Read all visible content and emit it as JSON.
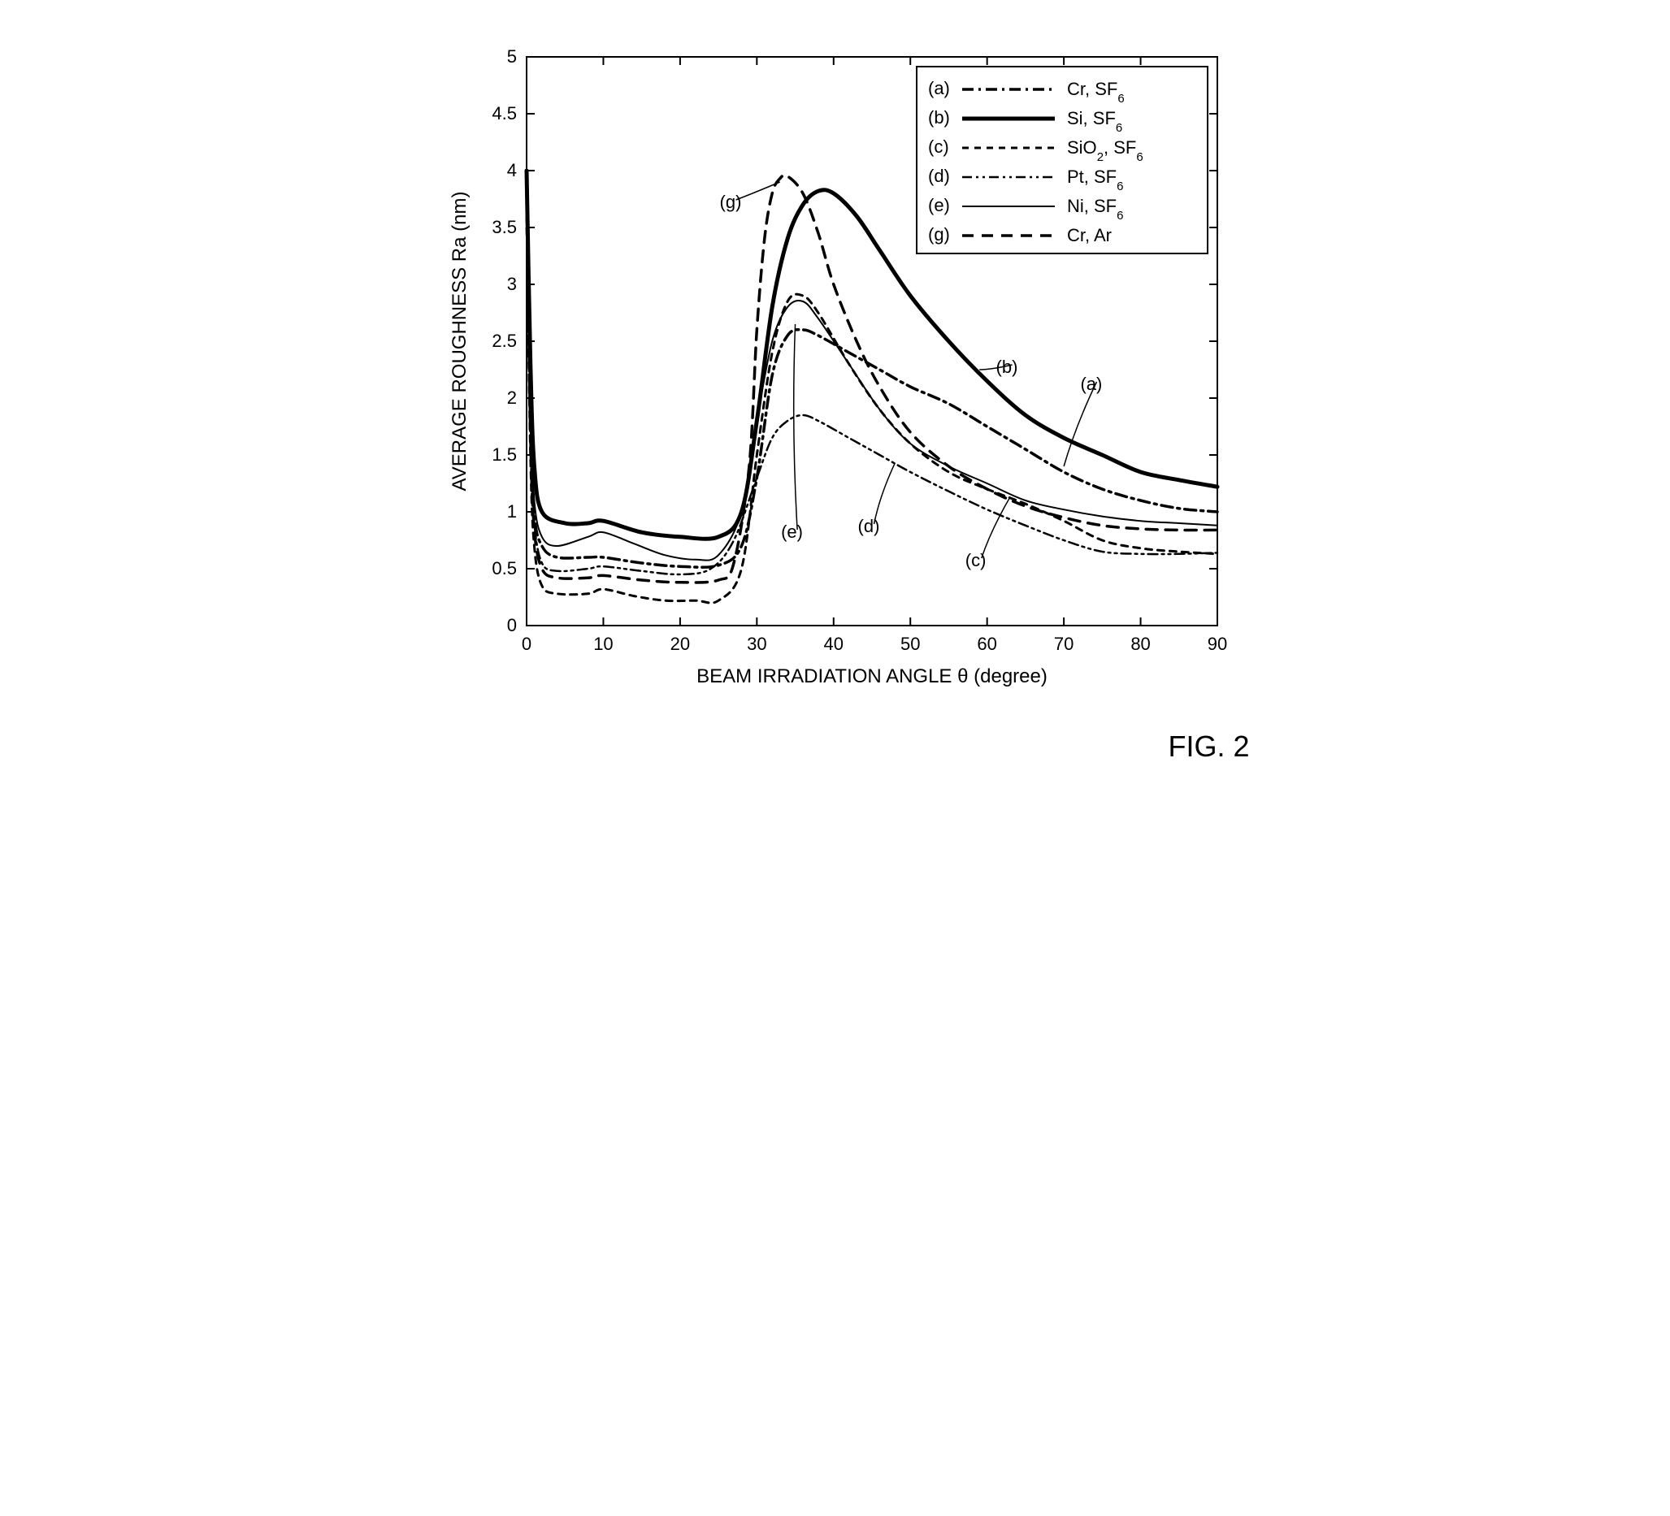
{
  "figure_label": "FIG. 2",
  "chart": {
    "type": "line",
    "background_color": "#ffffff",
    "plot_border_color": "#000000",
    "plot_border_width": 2,
    "x_axis": {
      "label": "BEAM IRRADIATION ANGLE θ (degree)",
      "min": 0,
      "max": 90,
      "tick_step": 10,
      "ticks": [
        0,
        10,
        20,
        30,
        40,
        50,
        60,
        70,
        80,
        90
      ],
      "label_fontsize": 24,
      "tick_fontsize": 22
    },
    "y_axis": {
      "label": "AVERAGE ROUGHNESS Ra (nm)",
      "min": 0,
      "max": 5,
      "tick_step": 0.5,
      "ticks": [
        0,
        0.5,
        1,
        1.5,
        2,
        2.5,
        3,
        3.5,
        4,
        4.5,
        5
      ],
      "label_fontsize": 24,
      "tick_fontsize": 22
    },
    "legend": {
      "position": "top-right-inside",
      "border": true,
      "items": [
        {
          "id": "a",
          "label": "Cr, SF",
          "sub": "6"
        },
        {
          "id": "b",
          "label": "Si, SF",
          "sub": "6"
        },
        {
          "id": "c",
          "label": "SiO",
          "sub1": "2",
          "label2": ", SF",
          "sub2": "6"
        },
        {
          "id": "d",
          "label": "Pt, SF",
          "sub": "6"
        },
        {
          "id": "e",
          "label": "Ni, SF",
          "sub": "6"
        },
        {
          "id": "g",
          "label": "Cr, Ar"
        }
      ]
    },
    "series": {
      "a": {
        "name": "Cr, SF6",
        "color": "#000000",
        "line_width": 3.5,
        "dash": "14 6 3 6",
        "points": [
          [
            0,
            4.0
          ],
          [
            0.5,
            2.0
          ],
          [
            1,
            1.0
          ],
          [
            2,
            0.7
          ],
          [
            4,
            0.6
          ],
          [
            8,
            0.6
          ],
          [
            10,
            0.6
          ],
          [
            15,
            0.55
          ],
          [
            20,
            0.52
          ],
          [
            25,
            0.53
          ],
          [
            28,
            0.7
          ],
          [
            30,
            1.3
          ],
          [
            32,
            2.2
          ],
          [
            34,
            2.55
          ],
          [
            36,
            2.6
          ],
          [
            38,
            2.55
          ],
          [
            42,
            2.4
          ],
          [
            46,
            2.25
          ],
          [
            50,
            2.1
          ],
          [
            55,
            1.95
          ],
          [
            60,
            1.75
          ],
          [
            65,
            1.55
          ],
          [
            70,
            1.35
          ],
          [
            75,
            1.2
          ],
          [
            80,
            1.1
          ],
          [
            85,
            1.03
          ],
          [
            90,
            1.0
          ]
        ]
      },
      "b": {
        "name": "Si, SF6",
        "color": "#000000",
        "line_width": 5,
        "dash": "none",
        "points": [
          [
            0,
            4.0
          ],
          [
            0.5,
            2.3
          ],
          [
            1,
            1.4
          ],
          [
            2,
            1.0
          ],
          [
            5,
            0.9
          ],
          [
            8,
            0.9
          ],
          [
            10,
            0.92
          ],
          [
            15,
            0.82
          ],
          [
            20,
            0.78
          ],
          [
            25,
            0.78
          ],
          [
            28,
            1.0
          ],
          [
            30,
            1.8
          ],
          [
            32,
            2.8
          ],
          [
            34,
            3.4
          ],
          [
            36,
            3.7
          ],
          [
            38,
            3.82
          ],
          [
            40,
            3.8
          ],
          [
            43,
            3.6
          ],
          [
            46,
            3.3
          ],
          [
            50,
            2.9
          ],
          [
            55,
            2.5
          ],
          [
            60,
            2.15
          ],
          [
            65,
            1.85
          ],
          [
            70,
            1.65
          ],
          [
            75,
            1.5
          ],
          [
            80,
            1.35
          ],
          [
            85,
            1.28
          ],
          [
            90,
            1.22
          ]
        ]
      },
      "c": {
        "name": "SiO2, SF6",
        "color": "#000000",
        "line_width": 3,
        "dash": "8 7",
        "points": [
          [
            0,
            3.6
          ],
          [
            0.5,
            1.5
          ],
          [
            1,
            0.7
          ],
          [
            2,
            0.35
          ],
          [
            4,
            0.28
          ],
          [
            8,
            0.28
          ],
          [
            10,
            0.32
          ],
          [
            14,
            0.26
          ],
          [
            18,
            0.22
          ],
          [
            22,
            0.22
          ],
          [
            25,
            0.22
          ],
          [
            28,
            0.5
          ],
          [
            30,
            1.5
          ],
          [
            32,
            2.4
          ],
          [
            34,
            2.85
          ],
          [
            36,
            2.9
          ],
          [
            38,
            2.75
          ],
          [
            42,
            2.3
          ],
          [
            46,
            1.9
          ],
          [
            50,
            1.6
          ],
          [
            55,
            1.35
          ],
          [
            60,
            1.2
          ],
          [
            65,
            1.07
          ],
          [
            70,
            0.92
          ],
          [
            75,
            0.75
          ],
          [
            80,
            0.68
          ],
          [
            85,
            0.65
          ],
          [
            90,
            0.63
          ]
        ]
      },
      "d": {
        "name": "Pt, SF6",
        "color": "#000000",
        "line_width": 2.5,
        "dash": "12 5 3 5 3 5",
        "points": [
          [
            0,
            3.5
          ],
          [
            0.5,
            1.6
          ],
          [
            1,
            0.9
          ],
          [
            2,
            0.55
          ],
          [
            4,
            0.48
          ],
          [
            8,
            0.5
          ],
          [
            10,
            0.52
          ],
          [
            15,
            0.48
          ],
          [
            20,
            0.45
          ],
          [
            24,
            0.5
          ],
          [
            27,
            0.75
          ],
          [
            30,
            1.3
          ],
          [
            32,
            1.65
          ],
          [
            34,
            1.8
          ],
          [
            36,
            1.85
          ],
          [
            38,
            1.8
          ],
          [
            42,
            1.65
          ],
          [
            46,
            1.5
          ],
          [
            50,
            1.35
          ],
          [
            55,
            1.18
          ],
          [
            60,
            1.02
          ],
          [
            65,
            0.88
          ],
          [
            70,
            0.75
          ],
          [
            75,
            0.65
          ],
          [
            80,
            0.63
          ],
          [
            85,
            0.63
          ],
          [
            90,
            0.64
          ]
        ]
      },
      "e": {
        "name": "Ni, SF6",
        "color": "#000000",
        "line_width": 2,
        "dash": "none",
        "points": [
          [
            0,
            3.8
          ],
          [
            0.5,
            1.9
          ],
          [
            1,
            1.1
          ],
          [
            2,
            0.78
          ],
          [
            4,
            0.7
          ],
          [
            8,
            0.78
          ],
          [
            10,
            0.82
          ],
          [
            14,
            0.72
          ],
          [
            18,
            0.62
          ],
          [
            22,
            0.58
          ],
          [
            25,
            0.62
          ],
          [
            28,
            1.0
          ],
          [
            30,
            1.8
          ],
          [
            32,
            2.5
          ],
          [
            34,
            2.8
          ],
          [
            36,
            2.85
          ],
          [
            38,
            2.7
          ],
          [
            42,
            2.3
          ],
          [
            46,
            1.9
          ],
          [
            50,
            1.6
          ],
          [
            55,
            1.4
          ],
          [
            60,
            1.25
          ],
          [
            65,
            1.1
          ],
          [
            70,
            1.02
          ],
          [
            75,
            0.96
          ],
          [
            80,
            0.92
          ],
          [
            85,
            0.9
          ],
          [
            90,
            0.88
          ]
        ]
      },
      "g": {
        "name": "Cr, Ar",
        "color": "#000000",
        "line_width": 3.5,
        "dash": "14 10",
        "points": [
          [
            0,
            3.9
          ],
          [
            0.5,
            1.7
          ],
          [
            1,
            0.85
          ],
          [
            2,
            0.5
          ],
          [
            4,
            0.42
          ],
          [
            8,
            0.42
          ],
          [
            10,
            0.44
          ],
          [
            15,
            0.4
          ],
          [
            20,
            0.38
          ],
          [
            25,
            0.4
          ],
          [
            27,
            0.55
          ],
          [
            29,
            1.4
          ],
          [
            30,
            2.6
          ],
          [
            31,
            3.4
          ],
          [
            32,
            3.8
          ],
          [
            33,
            3.93
          ],
          [
            34,
            3.95
          ],
          [
            36,
            3.8
          ],
          [
            38,
            3.45
          ],
          [
            40,
            3.0
          ],
          [
            43,
            2.5
          ],
          [
            46,
            2.1
          ],
          [
            50,
            1.7
          ],
          [
            55,
            1.4
          ],
          [
            60,
            1.2
          ],
          [
            65,
            1.05
          ],
          [
            70,
            0.95
          ],
          [
            75,
            0.88
          ],
          [
            80,
            0.85
          ],
          [
            85,
            0.84
          ],
          [
            90,
            0.84
          ]
        ]
      }
    },
    "callouts": [
      {
        "id": "g",
        "text": "(g)",
        "at_xy": [
          26,
          3.7
        ],
        "line_to": [
          33,
          3.9
        ]
      },
      {
        "id": "e",
        "text": "(e)",
        "at_xy": [
          34,
          0.8
        ],
        "line_to": [
          35,
          2.65
        ]
      },
      {
        "id": "d",
        "text": "(d)",
        "at_xy": [
          44,
          0.85
        ],
        "line_to": [
          48,
          1.43
        ]
      },
      {
        "id": "c",
        "text": "(c)",
        "at_xy": [
          58,
          0.55
        ],
        "line_to": [
          63,
          1.13
        ]
      },
      {
        "id": "b",
        "text": "(b)",
        "at_xy": [
          62,
          2.25
        ],
        "line_to": [
          59,
          2.25
        ]
      },
      {
        "id": "a",
        "text": "(a)",
        "at_xy": [
          73,
          2.1
        ],
        "line_to": [
          70,
          1.4
        ]
      }
    ]
  }
}
